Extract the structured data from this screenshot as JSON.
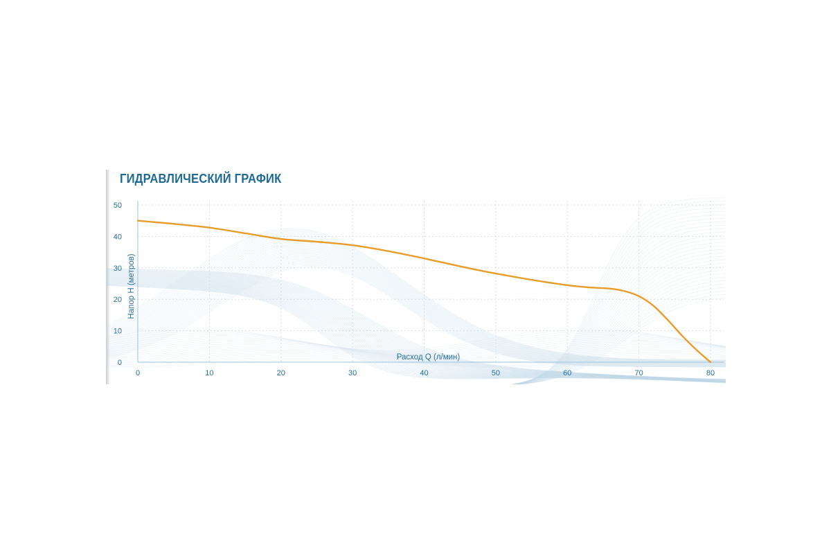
{
  "chart_data": {
    "type": "line",
    "title": "ГИДРАВЛИЧЕСКИЙ ГРАФИК",
    "xlabel": "Расход Q (л/мин)",
    "ylabel": "Напор H (метров)",
    "xlim": [
      0,
      80
    ],
    "ylim": [
      0,
      50
    ],
    "xticks": [
      0,
      10,
      20,
      30,
      40,
      50,
      60,
      70,
      80
    ],
    "yticks": [
      0,
      10,
      20,
      30,
      40,
      50
    ],
    "grid": true,
    "legend": "none",
    "colors": {
      "curve": "#e89c2a",
      "text": "#2a6f99",
      "title": "#1d6a94",
      "grid": "#d5dde3",
      "axis": "#9cc3db",
      "decor": "#b9d3e6"
    },
    "series": [
      {
        "x": [
          0,
          5,
          10,
          15,
          20,
          25,
          30,
          35,
          40,
          45,
          50,
          55,
          60,
          63,
          66,
          68,
          70,
          72,
          74,
          76,
          78,
          80
        ],
        "y": [
          45,
          44,
          42.8,
          41,
          39.2,
          38.3,
          37.2,
          35.3,
          33,
          30.5,
          28.2,
          26.2,
          24.5,
          23.8,
          23.4,
          22.6,
          21,
          18,
          13.5,
          8.5,
          4,
          0
        ]
      }
    ]
  }
}
